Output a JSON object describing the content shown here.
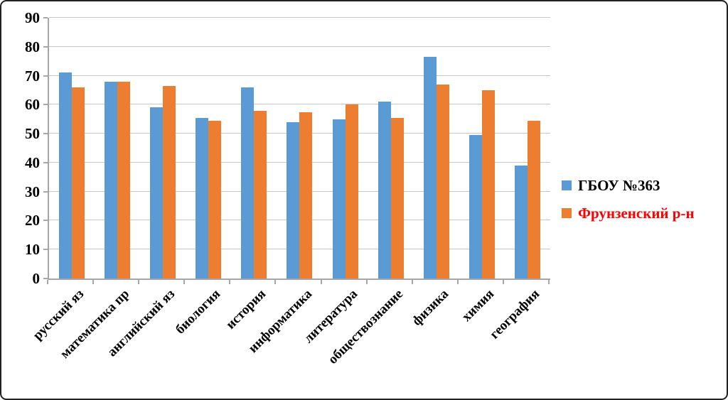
{
  "chart_data": {
    "type": "bar",
    "title": "",
    "xlabel": "",
    "ylabel": "",
    "categories": [
      "русский яз",
      "математика пр",
      "английский яз",
      "биология",
      "история",
      "информатика",
      "литература",
      "обществознание",
      "физика",
      "химия",
      "география"
    ],
    "series": [
      {
        "name": "ГБОУ №363",
        "color": "#5B9BD5",
        "label_color": "#000000",
        "values": [
          71,
          68,
          59,
          55.5,
          66,
          54,
          55,
          61,
          76.5,
          49.5,
          39
        ]
      },
      {
        "name": "Фрунзенский р-н",
        "color": "#ED7D31",
        "label_color": "#FF0000",
        "values": [
          66,
          68,
          66.5,
          54.5,
          58,
          57.5,
          60,
          55.5,
          67,
          65,
          54.5
        ]
      }
    ],
    "ylim": [
      0,
      90
    ],
    "ytick_step": 10,
    "yticks": [
      "0",
      "10",
      "20",
      "30",
      "40",
      "50",
      "60",
      "70",
      "80",
      "90"
    ],
    "grid": true,
    "legend_position": "right"
  },
  "colors": {
    "grid": "#C6C6C6",
    "axis": "#A6A6A6",
    "frame_border": "#222222",
    "series1": "#5B9BD5",
    "series2": "#ED7D31",
    "legend_text_1": "#000000",
    "legend_text_2": "#FF0000"
  }
}
